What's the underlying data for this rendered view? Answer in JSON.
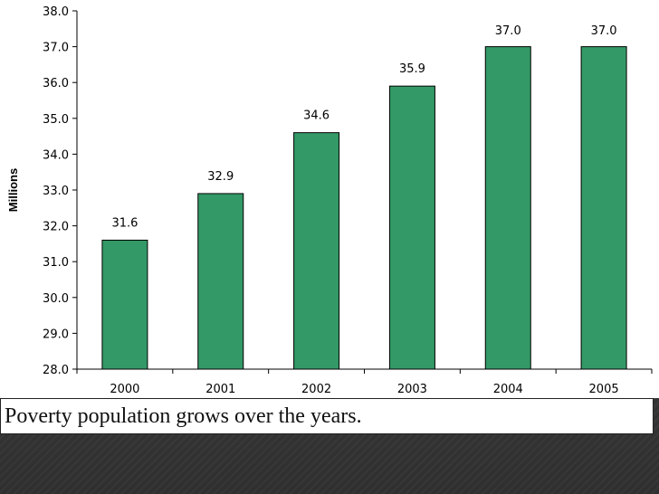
{
  "chart_data": {
    "type": "bar",
    "title": "",
    "xlabel": "",
    "ylabel": "Millions",
    "categories": [
      "2000",
      "2001",
      "2002",
      "2003",
      "2004",
      "2005"
    ],
    "values": [
      31.6,
      32.9,
      34.6,
      35.9,
      37.0,
      37.0
    ],
    "value_labels": [
      "31.6",
      "32.9",
      "34.6",
      "35.9",
      "37.0",
      "37.0"
    ],
    "ylim": [
      28.0,
      38.0
    ],
    "yticks": [
      "28.0",
      "29.0",
      "30.0",
      "31.0",
      "32.0",
      "33.0",
      "34.0",
      "35.0",
      "36.0",
      "37.0",
      "38.0"
    ],
    "grid": false,
    "bar_color": "#339966",
    "bar_outline_color": "#000000"
  },
  "caption": {
    "text": "Poverty population grows over the years."
  },
  "colors": {
    "slide_background": "#3d3d3d",
    "chart_background": "#ffffff"
  }
}
